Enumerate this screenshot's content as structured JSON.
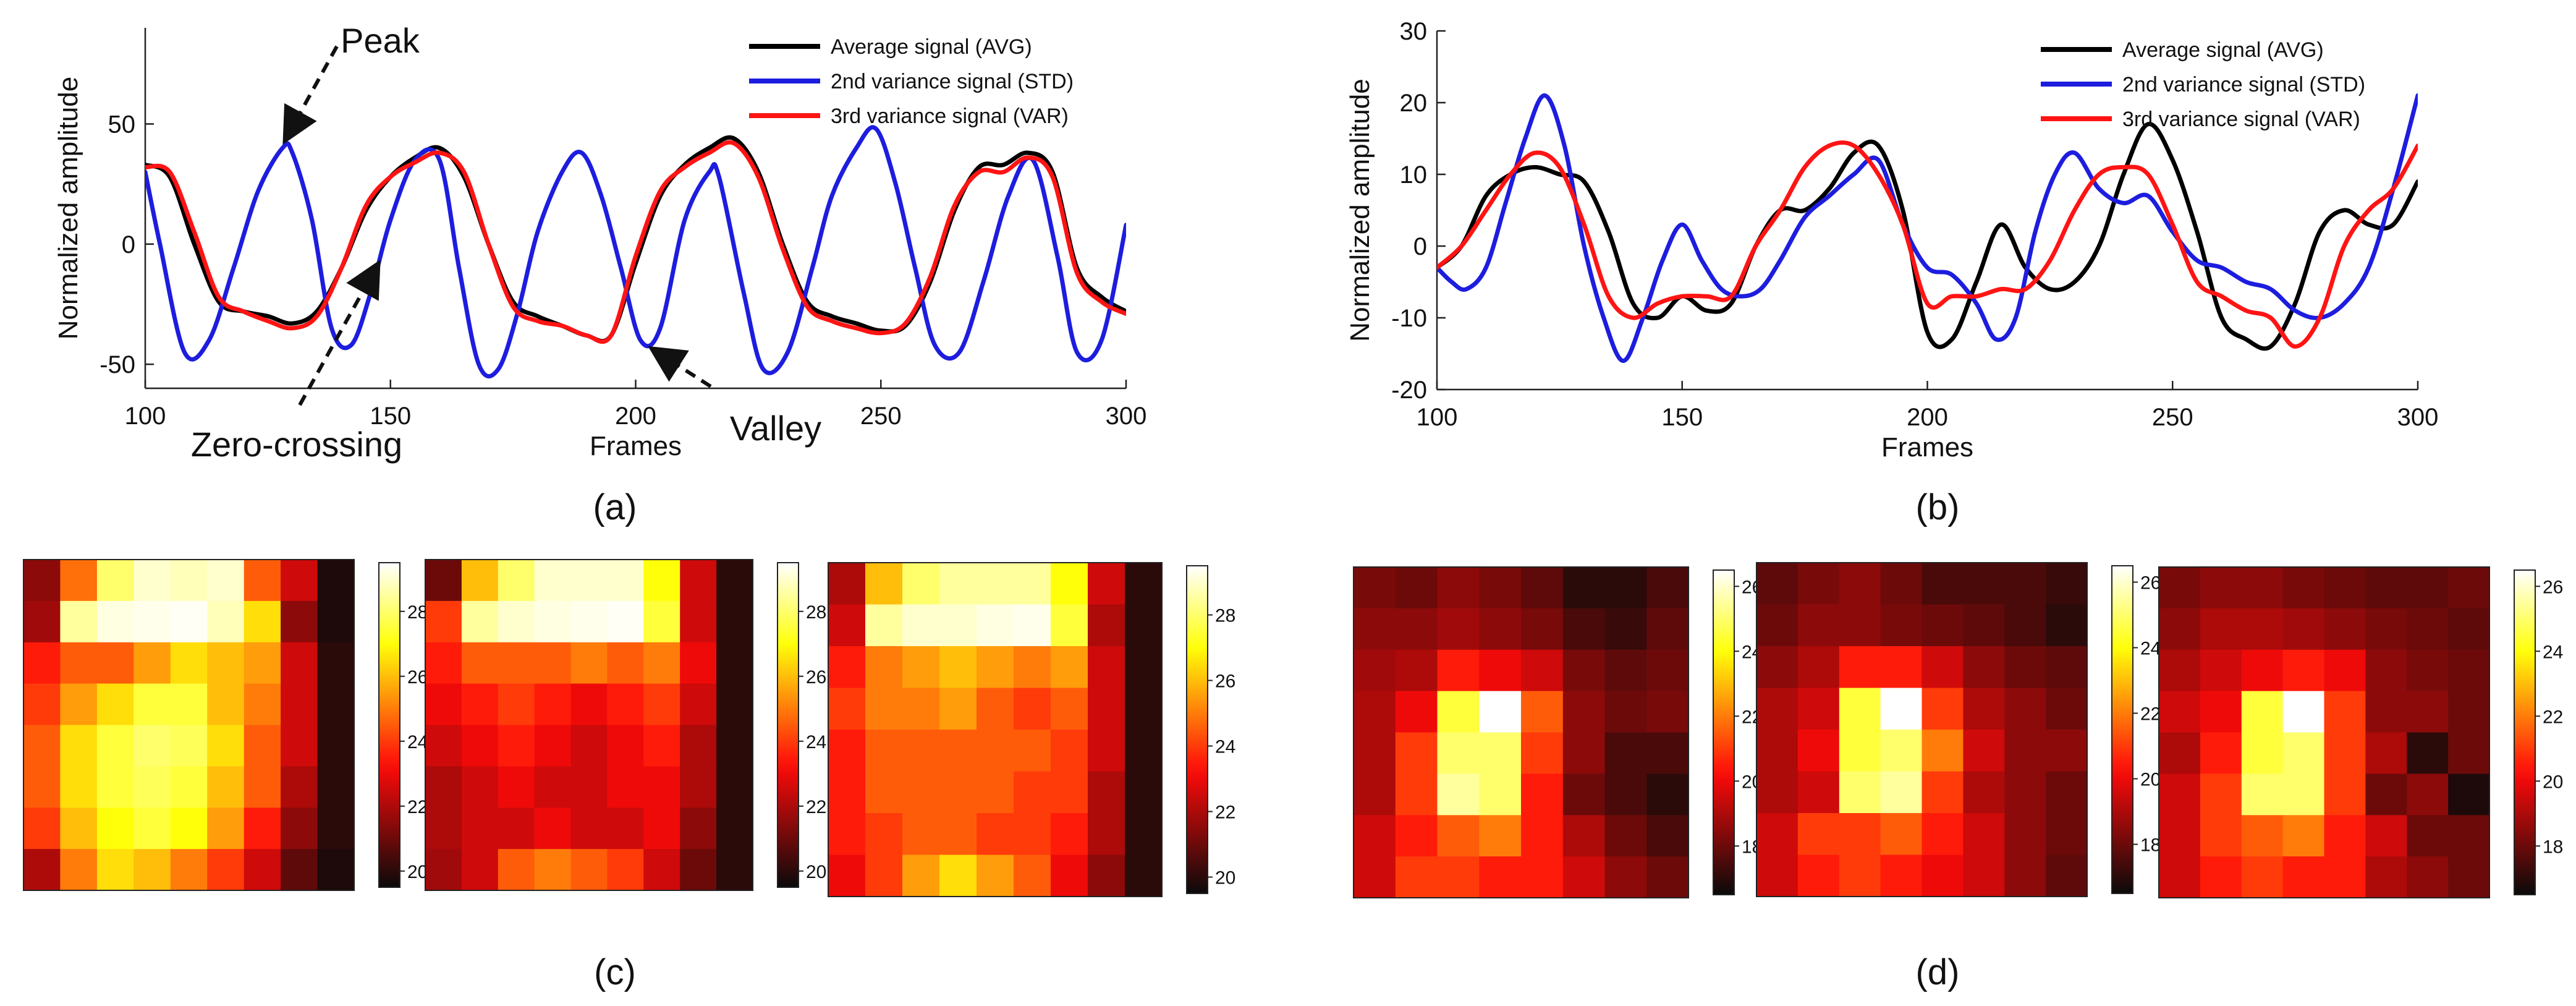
{
  "figure": {
    "panel_labels": [
      "(a)",
      "(b)",
      "(c)",
      "(d)"
    ]
  },
  "chart_data": [
    {
      "id": "a",
      "type": "line",
      "xlabel": "Frames",
      "ylabel": "Normalized amplitude",
      "xlim": [
        100,
        300
      ],
      "ylim": [
        -60,
        90
      ],
      "xticks": [
        100,
        150,
        200,
        250,
        300
      ],
      "yticks": [
        -50,
        0,
        50
      ],
      "legend_position": "top-right",
      "series": [
        {
          "name": "Average signal (AVG)",
          "color": "#000000",
          "x": [
            100,
            105,
            110,
            115,
            120,
            125,
            130,
            135,
            140,
            145,
            150,
            155,
            160,
            165,
            170,
            175,
            180,
            185,
            190,
            195,
            200,
            205,
            210,
            215,
            220,
            225,
            230,
            235,
            240,
            245,
            250,
            255,
            260,
            265,
            270,
            275,
            280,
            285,
            290,
            295,
            300
          ],
          "y": [
            33,
            28,
            0,
            -24,
            -28,
            -30,
            -33,
            -28,
            -10,
            14,
            28,
            36,
            40,
            28,
            0,
            -24,
            -30,
            -34,
            -38,
            -38,
            -8,
            20,
            33,
            40,
            44,
            30,
            0,
            -24,
            -30,
            -33,
            -36,
            -34,
            -16,
            14,
            32,
            33,
            38,
            30,
            -10,
            -22,
            -28
          ]
        },
        {
          "name": "2nd variance signal (STD)",
          "color": "#1d1ddf",
          "x": [
            100,
            103,
            108,
            113,
            118,
            123,
            128,
            130,
            134,
            138,
            142,
            146,
            150,
            155,
            160,
            164,
            168,
            172,
            176,
            180,
            185,
            189,
            193,
            197,
            201,
            205,
            210,
            215,
            217,
            222,
            226,
            231,
            236,
            240,
            245,
            249,
            253,
            257,
            261,
            266,
            271,
            276,
            281,
            286,
            290,
            295,
            300
          ],
          "y": [
            30,
            0,
            -45,
            -40,
            -10,
            22,
            40,
            38,
            10,
            -35,
            -42,
            -20,
            10,
            35,
            35,
            -10,
            -50,
            -52,
            -28,
            5,
            30,
            38,
            20,
            -10,
            -40,
            -35,
            10,
            30,
            28,
            -20,
            -52,
            -45,
            -10,
            20,
            40,
            48,
            25,
            -10,
            -42,
            -45,
            -15,
            20,
            35,
            -5,
            -45,
            -40,
            8
          ]
        },
        {
          "name": "3rd variance signal (VAR)",
          "color": "#ff1414",
          "x": [
            100,
            105,
            110,
            115,
            120,
            125,
            130,
            135,
            140,
            145,
            150,
            155,
            160,
            165,
            170,
            175,
            180,
            185,
            190,
            195,
            200,
            205,
            210,
            215,
            220,
            225,
            230,
            235,
            240,
            245,
            250,
            255,
            260,
            265,
            270,
            275,
            280,
            285,
            290,
            295,
            300
          ],
          "y": [
            32,
            30,
            5,
            -22,
            -28,
            -32,
            -35,
            -30,
            -10,
            16,
            28,
            34,
            38,
            30,
            0,
            -26,
            -32,
            -34,
            -38,
            -38,
            -5,
            22,
            32,
            38,
            42,
            28,
            -2,
            -26,
            -32,
            -35,
            -37,
            -33,
            -14,
            16,
            30,
            30,
            36,
            28,
            -12,
            -24,
            -29
          ]
        }
      ],
      "annotations": [
        {
          "text": "Peak",
          "target": [
            128,
            40
          ]
        },
        {
          "text": "Zero-crossing",
          "target": [
            148,
            -5
          ]
        },
        {
          "text": "Valley",
          "target": [
            203,
            -40
          ]
        }
      ]
    },
    {
      "id": "b",
      "type": "line",
      "xlabel": "Frames",
      "ylabel": "Normalized amplitude",
      "xlim": [
        100,
        300
      ],
      "ylim": [
        -20,
        30
      ],
      "xticks": [
        100,
        150,
        200,
        250,
        300
      ],
      "yticks": [
        -20,
        -10,
        0,
        10,
        20,
        30
      ],
      "legend_position": "top-right",
      "series": [
        {
          "name": "Average signal (AVG)",
          "color": "#000000",
          "x": [
            100,
            105,
            110,
            115,
            120,
            125,
            130,
            135,
            140,
            145,
            150,
            155,
            160,
            165,
            170,
            175,
            180,
            185,
            190,
            195,
            200,
            205,
            210,
            215,
            220,
            225,
            230,
            235,
            240,
            245,
            250,
            255,
            260,
            265,
            270,
            275,
            280,
            285,
            290,
            295,
            300
          ],
          "y": [
            -3,
            0,
            7,
            10,
            11,
            10,
            9,
            2,
            -8,
            -10,
            -7,
            -9,
            -8,
            0,
            5,
            5,
            8,
            13,
            14,
            5,
            -12,
            -13,
            -5,
            3,
            -3,
            -6,
            -5,
            0,
            10,
            17,
            12,
            2,
            -10,
            -13,
            -14,
            -8,
            2,
            5,
            3,
            3,
            9
          ]
        },
        {
          "name": "2nd variance signal (STD)",
          "color": "#1d1ddf",
          "x": [
            100,
            103,
            106,
            110,
            114,
            118,
            122,
            126,
            130,
            134,
            138,
            142,
            146,
            150,
            154,
            158,
            162,
            166,
            170,
            175,
            180,
            185,
            190,
            195,
            200,
            205,
            210,
            214,
            218,
            222,
            226,
            230,
            235,
            240,
            245,
            250,
            255,
            260,
            265,
            270,
            275,
            280,
            285,
            290,
            295,
            300
          ],
          "y": [
            -3,
            -5,
            -6,
            -3,
            6,
            15,
            21,
            14,
            0,
            -10,
            -16,
            -10,
            -2,
            3,
            -2,
            -6,
            -7,
            -6,
            -2,
            4,
            7,
            10,
            12,
            3,
            -3,
            -4,
            -8,
            -13,
            -10,
            2,
            10,
            13,
            8,
            6,
            7,
            2,
            -2,
            -3,
            -5,
            -6,
            -9,
            -10,
            -8,
            -3,
            8,
            21
          ]
        },
        {
          "name": "3rd variance signal (VAR)",
          "color": "#ff1414",
          "x": [
            100,
            105,
            110,
            115,
            120,
            125,
            130,
            135,
            140,
            145,
            150,
            155,
            160,
            165,
            170,
            175,
            180,
            185,
            190,
            195,
            200,
            205,
            210,
            215,
            220,
            225,
            230,
            235,
            240,
            245,
            250,
            255,
            260,
            265,
            270,
            275,
            280,
            285,
            290,
            295,
            300
          ],
          "y": [
            -3,
            0,
            5,
            10,
            13,
            11,
            3,
            -7,
            -10,
            -8,
            -7,
            -7,
            -7,
            0,
            5,
            11,
            14,
            14,
            10,
            3,
            -8,
            -7,
            -7,
            -6,
            -6,
            -2,
            5,
            10,
            11,
            10,
            3,
            -5,
            -7,
            -9,
            -10,
            -14,
            -10,
            0,
            5,
            8,
            14
          ]
        }
      ]
    },
    {
      "id": "c",
      "type": "heatmap",
      "colormap": "hot",
      "colorbar_range": [
        19.5,
        29.5
      ],
      "colorbar_ticks": [
        20,
        22,
        24,
        26,
        28
      ],
      "maps": [
        [
          [
            21.5,
            24.8,
            28.0,
            29.0,
            28.8,
            29.0,
            24.5,
            22.5,
            19.8
          ],
          [
            21.8,
            28.5,
            29.2,
            29.3,
            29.4,
            28.8,
            26.5,
            21.5,
            19.8
          ],
          [
            23.5,
            24.5,
            24.5,
            25.5,
            26.5,
            26.0,
            25.5,
            22.5,
            20.0
          ],
          [
            24.0,
            25.5,
            26.5,
            27.5,
            27.5,
            26.0,
            25.0,
            22.5,
            20.0
          ],
          [
            24.5,
            26.5,
            27.5,
            28.0,
            27.8,
            26.5,
            24.5,
            22.5,
            20.0
          ],
          [
            24.5,
            26.5,
            27.5,
            27.8,
            27.5,
            26.0,
            24.5,
            22.0,
            20.0
          ],
          [
            24.0,
            26.0,
            27.0,
            27.5,
            27.0,
            25.5,
            23.5,
            21.5,
            20.0
          ],
          [
            22.0,
            25.0,
            26.5,
            26.0,
            25.0,
            24.0,
            22.5,
            20.8,
            19.8
          ]
        ],
        [
          [
            21.0,
            26.0,
            28.0,
            29.0,
            29.0,
            29.0,
            27.0,
            22.5,
            20.0
          ],
          [
            24.0,
            28.5,
            29.0,
            29.2,
            29.3,
            29.4,
            27.5,
            22.5,
            20.0
          ],
          [
            23.5,
            24.5,
            24.5,
            24.5,
            25.0,
            24.5,
            25.0,
            23.0,
            20.0
          ],
          [
            23.0,
            23.5,
            24.0,
            23.5,
            23.0,
            23.5,
            24.0,
            22.5,
            20.0
          ],
          [
            22.5,
            23.0,
            23.5,
            23.0,
            22.5,
            23.0,
            23.5,
            22.0,
            20.0
          ],
          [
            22.0,
            22.5,
            23.0,
            22.5,
            22.5,
            23.0,
            23.0,
            22.0,
            20.0
          ],
          [
            22.0,
            22.5,
            22.5,
            23.0,
            22.5,
            22.5,
            23.0,
            21.5,
            20.0
          ],
          [
            21.8,
            22.5,
            24.5,
            25.0,
            24.5,
            24.0,
            22.5,
            21.0,
            20.0
          ]
        ],
        [
          [
            22.0,
            26.0,
            28.0,
            28.5,
            28.5,
            28.5,
            27.0,
            22.5,
            20.0
          ],
          [
            22.5,
            28.5,
            29.0,
            29.0,
            29.2,
            29.3,
            27.5,
            22.0,
            20.0
          ],
          [
            23.5,
            25.0,
            25.5,
            26.0,
            25.5,
            25.0,
            25.5,
            22.5,
            20.0
          ],
          [
            24.0,
            25.0,
            25.0,
            25.5,
            24.5,
            24.0,
            24.5,
            22.5,
            20.0
          ],
          [
            23.5,
            24.5,
            24.5,
            24.5,
            24.5,
            24.5,
            24.0,
            22.5,
            20.0
          ],
          [
            23.5,
            24.5,
            24.5,
            24.5,
            24.5,
            24.0,
            24.0,
            22.0,
            20.0
          ],
          [
            23.5,
            24.0,
            24.5,
            24.5,
            24.0,
            24.0,
            23.5,
            22.0,
            20.0
          ],
          [
            23.0,
            24.0,
            25.5,
            26.5,
            25.5,
            24.5,
            23.0,
            21.5,
            20.0
          ]
        ]
      ]
    },
    {
      "id": "d",
      "type": "heatmap",
      "colormap": "hot",
      "colorbar_range": [
        16.5,
        26.5
      ],
      "colorbar_ticks": [
        18,
        20,
        22,
        24,
        26
      ],
      "maps": [
        [
          [
            18.2,
            18.0,
            18.5,
            18.2,
            17.8,
            17.0,
            17.0,
            17.5
          ],
          [
            18.5,
            18.5,
            18.8,
            18.5,
            18.2,
            17.5,
            17.2,
            17.8
          ],
          [
            18.8,
            19.0,
            20.5,
            20.0,
            19.5,
            18.2,
            17.8,
            18.0
          ],
          [
            19.0,
            20.0,
            24.5,
            26.5,
            21.5,
            18.5,
            18.0,
            18.2
          ],
          [
            19.0,
            21.0,
            25.0,
            25.0,
            21.0,
            18.5,
            17.5,
            17.5
          ],
          [
            19.0,
            21.0,
            25.5,
            25.0,
            20.5,
            18.0,
            17.5,
            17.0
          ],
          [
            19.5,
            20.5,
            21.5,
            22.0,
            20.5,
            19.0,
            18.0,
            17.5
          ],
          [
            19.5,
            21.0,
            21.0,
            20.5,
            20.5,
            19.5,
            18.5,
            18.0
          ]
        ],
        [
          [
            17.8,
            18.2,
            18.5,
            18.0,
            17.5,
            17.5,
            17.5,
            17.2
          ],
          [
            18.0,
            18.5,
            18.5,
            18.2,
            18.0,
            17.8,
            17.5,
            17.0
          ],
          [
            18.5,
            19.0,
            20.5,
            20.5,
            19.5,
            18.5,
            18.0,
            17.8
          ],
          [
            19.0,
            19.5,
            24.5,
            26.5,
            21.0,
            19.0,
            18.5,
            18.0
          ],
          [
            19.0,
            20.0,
            24.5,
            25.0,
            22.0,
            19.5,
            18.5,
            18.5
          ],
          [
            19.0,
            19.5,
            25.0,
            25.5,
            21.0,
            19.0,
            18.5,
            18.0
          ],
          [
            19.5,
            21.0,
            21.0,
            21.5,
            20.5,
            19.5,
            18.5,
            18.0
          ],
          [
            19.5,
            20.5,
            21.0,
            20.5,
            20.0,
            19.5,
            18.5,
            17.8
          ]
        ],
        [
          [
            18.2,
            18.5,
            18.5,
            18.2,
            18.0,
            17.8,
            17.8,
            18.0
          ],
          [
            18.5,
            19.0,
            19.0,
            18.8,
            18.5,
            18.2,
            18.0,
            17.8
          ],
          [
            19.0,
            19.5,
            20.0,
            20.5,
            20.0,
            18.5,
            18.2,
            18.0
          ],
          [
            19.5,
            20.0,
            24.5,
            26.5,
            21.0,
            18.5,
            18.5,
            18.0
          ],
          [
            19.0,
            20.5,
            24.5,
            25.0,
            21.0,
            19.0,
            17.0,
            18.0
          ],
          [
            19.5,
            21.0,
            25.0,
            25.0,
            21.0,
            18.0,
            18.5,
            16.8
          ],
          [
            19.5,
            21.0,
            21.5,
            22.0,
            20.5,
            19.5,
            18.0,
            18.0
          ],
          [
            19.5,
            20.5,
            21.0,
            20.5,
            20.5,
            19.0,
            18.5,
            18.0
          ]
        ]
      ]
    }
  ]
}
